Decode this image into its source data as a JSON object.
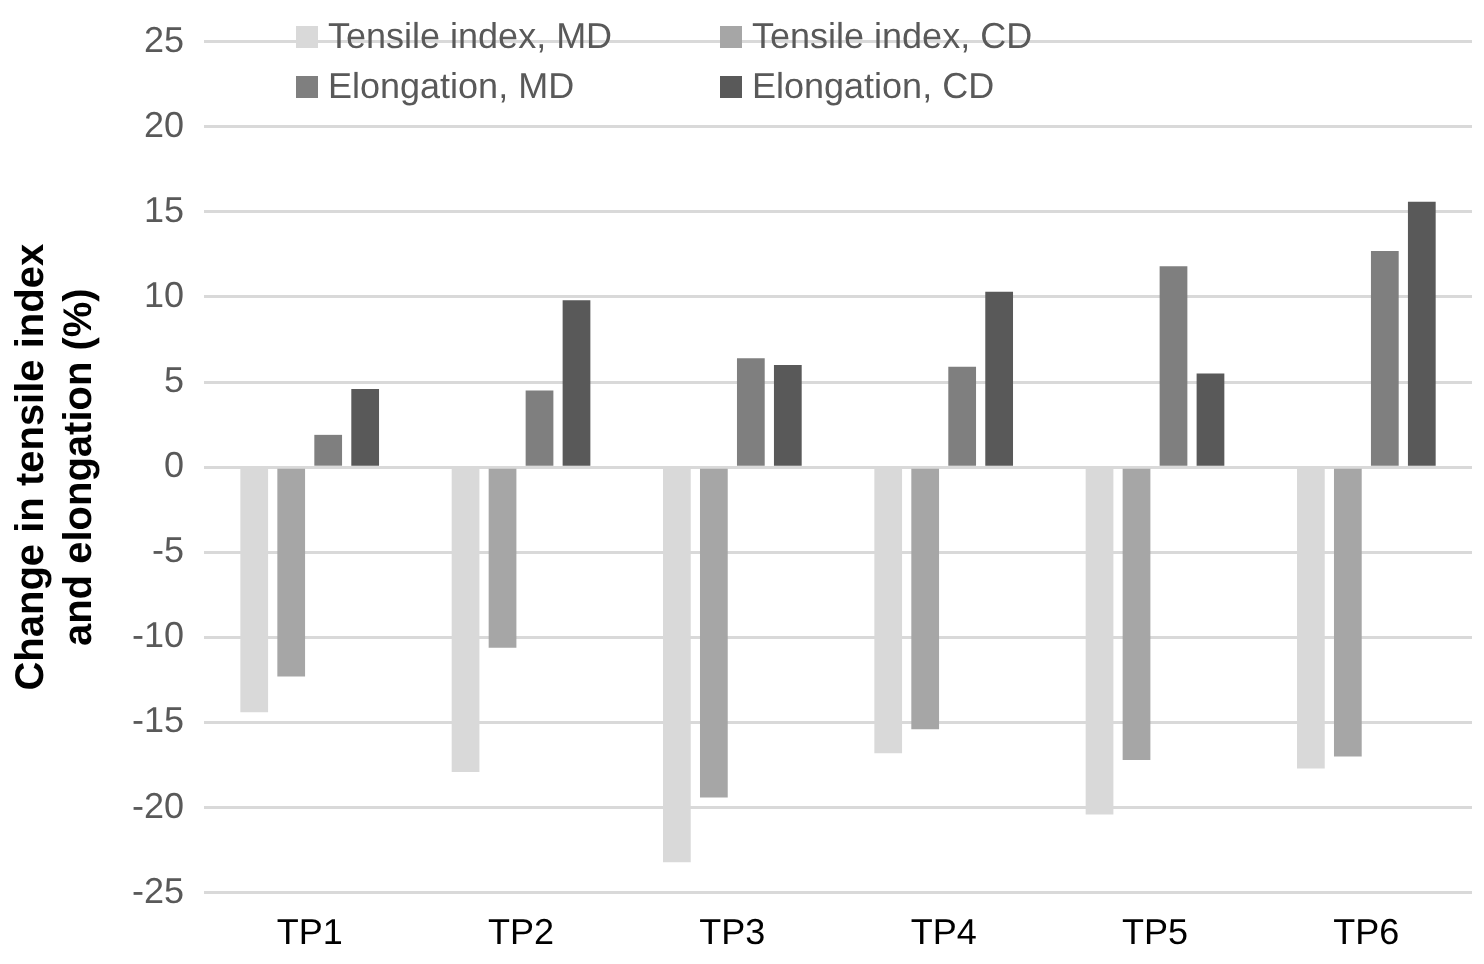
{
  "chart_data": {
    "type": "bar",
    "ylabel": "Change in tensile index and elongation (%)",
    "categories": [
      "TP1",
      "TP2",
      "TP3",
      "TP4",
      "TP5",
      "TP6"
    ],
    "series": [
      {
        "name": "Tensile index, MD",
        "color": "#d9d9d9",
        "values": [
          -14.4,
          -17.9,
          -23.2,
          -16.8,
          -20.4,
          -17.7
        ]
      },
      {
        "name": "Tensile index, CD",
        "color": "#a6a6a6",
        "values": [
          -12.3,
          -10.6,
          -19.4,
          -15.4,
          -17.2,
          -17.0
        ]
      },
      {
        "name": "Elongation, MD",
        "color": "#7f7f7f",
        "values": [
          1.9,
          4.5,
          6.4,
          5.9,
          11.8,
          12.7
        ]
      },
      {
        "name": "Elongation, CD",
        "color": "#595959",
        "values": [
          4.6,
          9.8,
          6.0,
          10.3,
          5.5,
          15.6
        ]
      }
    ],
    "ylim": [
      -25,
      25
    ],
    "yticks": [
      -25,
      -20,
      -15,
      -10,
      -5,
      0,
      5,
      10,
      15,
      20,
      25
    ],
    "grid": "y",
    "legend": "top"
  }
}
